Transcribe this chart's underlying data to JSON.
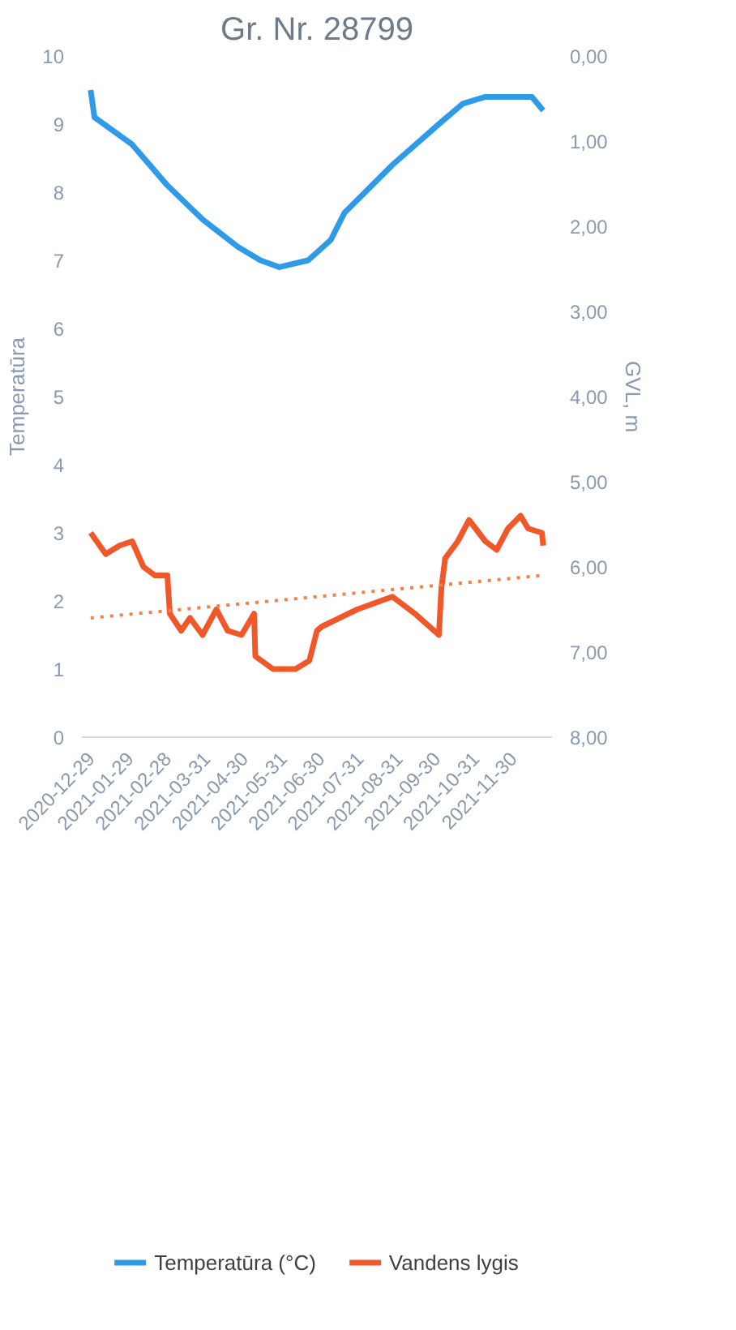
{
  "chart_data": {
    "type": "line",
    "title": "Gr. Nr. 28799",
    "ylabel": "Temperatūra",
    "y2label": "GVL, m",
    "legend": "bottom",
    "grid": false,
    "xlim": [
      "2020-12-22",
      "2021-12-31"
    ],
    "xticks": [
      "2020-12-29",
      "2021-01-29",
      "2021-02-28",
      "2021-03-31",
      "2021-04-30",
      "2021-05-31",
      "2021-06-30",
      "2021-07-31",
      "2021-08-31",
      "2021-09-30",
      "2021-10-31",
      "2021-11-30"
    ],
    "ylim": [
      0,
      10
    ],
    "yticks": [
      0,
      1,
      2,
      3,
      4,
      5,
      6,
      7,
      8,
      9,
      10
    ],
    "y2lim": [
      8,
      0
    ],
    "y2ticks": [
      {
        "value": 0,
        "label": "0,00"
      },
      {
        "value": 1,
        "label": "1,00"
      },
      {
        "value": 2,
        "label": "2,00"
      },
      {
        "value": 3,
        "label": "3,00"
      },
      {
        "value": 4,
        "label": "4,00"
      },
      {
        "value": 5,
        "label": "5,00"
      },
      {
        "value": 6,
        "label": "6,00"
      },
      {
        "value": 7,
        "label": "7,00"
      },
      {
        "value": 8,
        "label": "8,00"
      }
    ],
    "series": [
      {
        "name": "Temperatūra (°C)",
        "color": "#2f9be8",
        "x": [
          "2020-12-29",
          "2021-01-01",
          "2021-01-31",
          "2021-02-28",
          "2021-03-28",
          "2021-04-25",
          "2021-05-13",
          "2021-05-28",
          "2021-06-20",
          "2021-07-08",
          "2021-07-19",
          "2021-08-26",
          "2021-10-02",
          "2021-10-21",
          "2021-11-08",
          "2021-11-26",
          "2021-12-15",
          "2021-12-24"
        ],
        "values": [
          9.5,
          9.1,
          8.7,
          8.1,
          7.6,
          7.2,
          7.0,
          6.9,
          7.0,
          7.3,
          7.7,
          8.4,
          9.0,
          9.3,
          9.4,
          9.4,
          9.4,
          9.2
        ]
      },
      {
        "name": "Vandens lygis",
        "color": "#f0582a",
        "axis": "y2",
        "x": [
          "2020-12-29",
          "2021-01-10",
          "2021-01-21",
          "2021-01-31",
          "2021-02-09",
          "2021-02-18",
          "2021-02-28",
          "2021-03-02",
          "2021-03-11",
          "2021-03-18",
          "2021-03-28",
          "2021-04-08",
          "2021-04-17",
          "2021-04-28",
          "2021-05-08",
          "2021-05-09",
          "2021-05-23",
          "2021-06-10",
          "2021-06-21",
          "2021-06-27",
          "2021-07-01",
          "2021-07-08",
          "2021-07-29",
          "2021-08-26",
          "2021-09-13",
          "2021-10-02",
          "2021-10-04",
          "2021-10-07",
          "2021-10-17",
          "2021-10-26",
          "2021-11-08",
          "2021-11-17",
          "2021-11-26",
          "2021-12-06",
          "2021-12-12",
          "2021-12-23",
          "2021-12-24"
        ],
        "values": [
          5.6,
          5.85,
          5.75,
          5.7,
          6.0,
          6.1,
          6.1,
          6.55,
          6.75,
          6.6,
          6.8,
          6.5,
          6.75,
          6.8,
          6.55,
          7.05,
          7.2,
          7.2,
          7.1,
          6.75,
          6.7,
          6.65,
          6.5,
          6.35,
          6.55,
          6.8,
          6.25,
          5.9,
          5.7,
          5.45,
          5.7,
          5.8,
          5.55,
          5.4,
          5.55,
          5.6,
          5.75
        ]
      },
      {
        "type": "line",
        "color": "#f0824c",
        "axis": "y2",
        "line_style": "dotted",
        "x": [
          "2020-12-29",
          "2021-12-24"
        ],
        "values": [
          6.6,
          6.1
        ]
      }
    ]
  }
}
